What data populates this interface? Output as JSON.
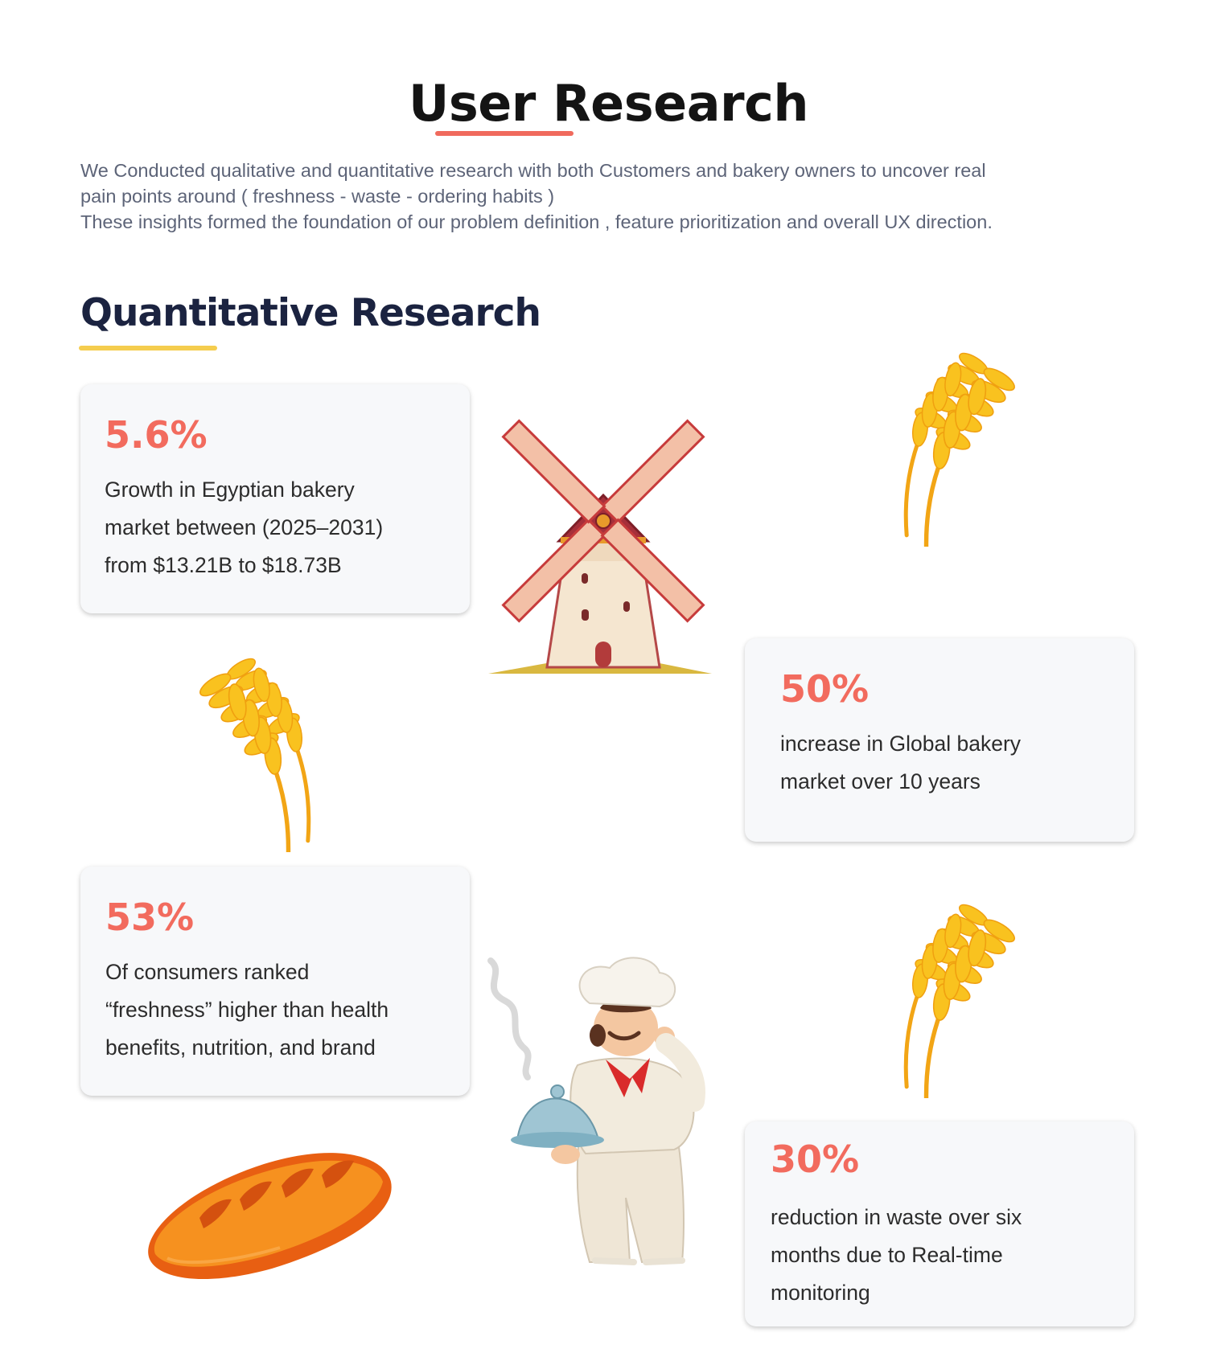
{
  "header": {
    "title": "User Research",
    "intro_lines": [
      "We Conducted qualitative and quantitative research with both Customers and bakery owners to uncover real",
      "pain points around ( freshness - waste - ordering habits )",
      "These insights formed the foundation of our problem definition , feature prioritization and overall UX direction."
    ]
  },
  "section": {
    "title": "Quantitative Research"
  },
  "cards": [
    {
      "stat": "5.6%",
      "lines": [
        "Growth in Egyptian bakery",
        "market between (2025–2031)",
        "from $13.21B  to $18.73B"
      ]
    },
    {
      "stat": "50%",
      "lines": [
        "increase in Global bakery",
        "market over 10 years"
      ]
    },
    {
      "stat": "53%",
      "lines": [
        "Of consumers ranked",
        "“freshness” higher than health",
        "benefits, nutrition, and brand"
      ]
    },
    {
      "stat": "30%",
      "lines": [
        "reduction in waste over six",
        "months due to Real-time",
        "monitoring"
      ]
    }
  ],
  "illustrations": {
    "windmill": "windmill-icon",
    "wheat": "wheat-icon",
    "chef": "chef-icon",
    "bread": "bread-icon"
  },
  "colors": {
    "accent_red": "#f26b5e",
    "accent_yellow": "#f5cd4e",
    "heading": "#1b2340",
    "body_text": "#5d6478",
    "card_bg": "#f7f8fa"
  }
}
